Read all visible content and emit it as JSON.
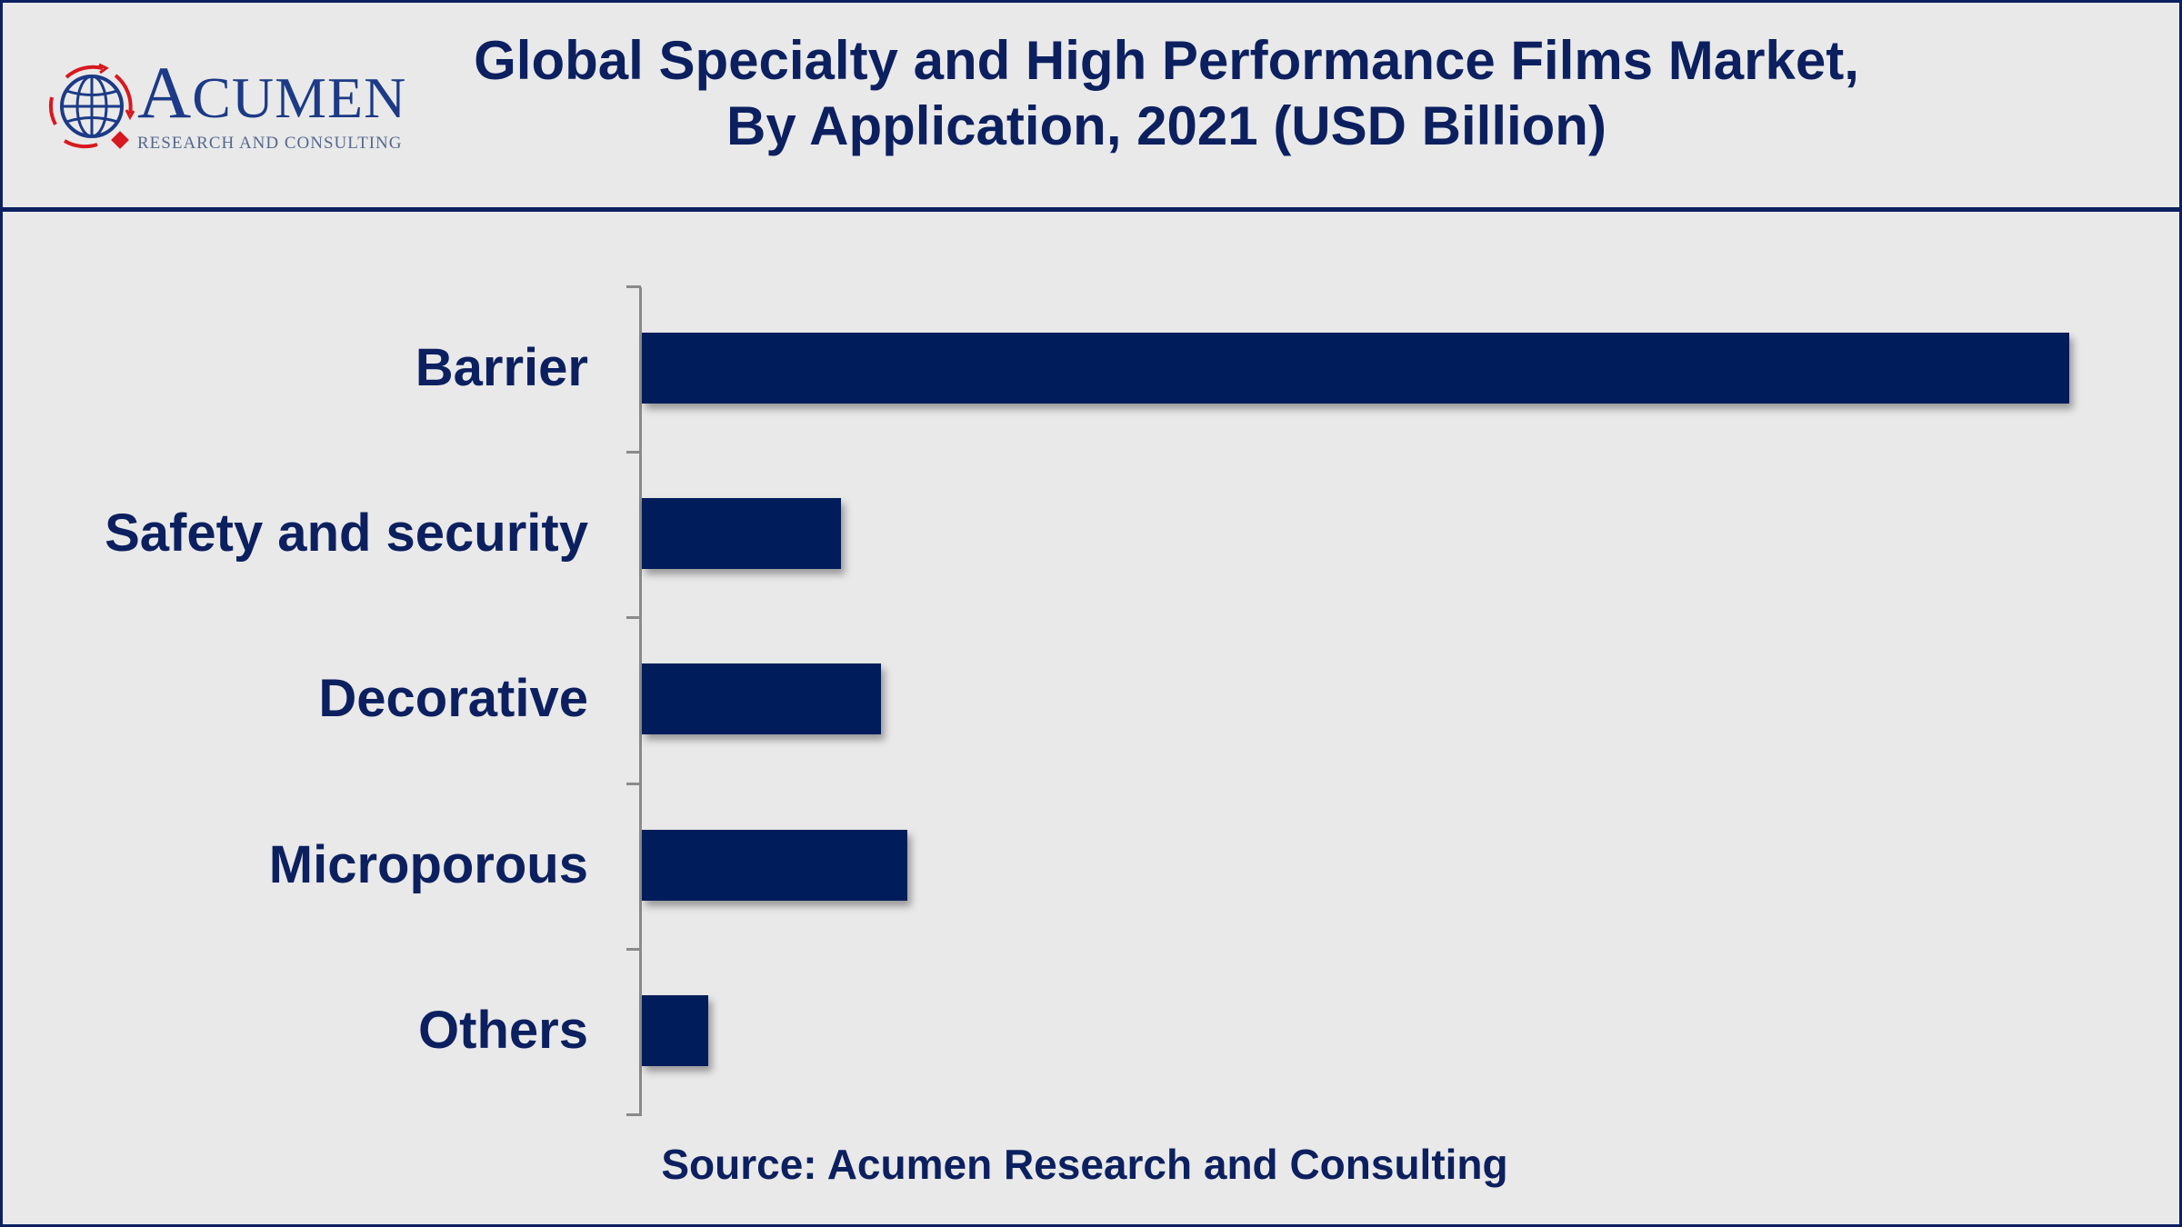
{
  "header": {
    "logo": {
      "brand_initial": "A",
      "brand_rest": "CUMEN",
      "tagline": "RESEARCH AND CONSULTING"
    },
    "title_line1": "Global Specialty and High Performance Films Market,",
    "title_line2": "By Application, 2021 (USD Billion)"
  },
  "footer": {
    "source": "Source: Acumen Research and Consulting"
  },
  "colors": {
    "bar": "#001c5a",
    "text": "#0c2060",
    "background": "#e9e9e9",
    "axis": "#8a8a8a",
    "logo_red": "#d7191f"
  },
  "chart_data": {
    "type": "bar",
    "orientation": "horizontal",
    "title": "Global Specialty and High Performance Films Market, By Application, 2021 (USD Billion)",
    "xlabel": "",
    "ylabel": "",
    "categories": [
      "Barrier",
      "Safety and security",
      "Decorative",
      "Microporous",
      "Others"
    ],
    "values": [
      21.5,
      3.0,
      3.6,
      4.0,
      1.0
    ],
    "value_note": "Values estimated from relative bar lengths; no axis ticks or data labels shown",
    "xlim": [
      0,
      22
    ],
    "grid": false,
    "legend": null,
    "source": "Source: Acumen Research and Consulting"
  }
}
